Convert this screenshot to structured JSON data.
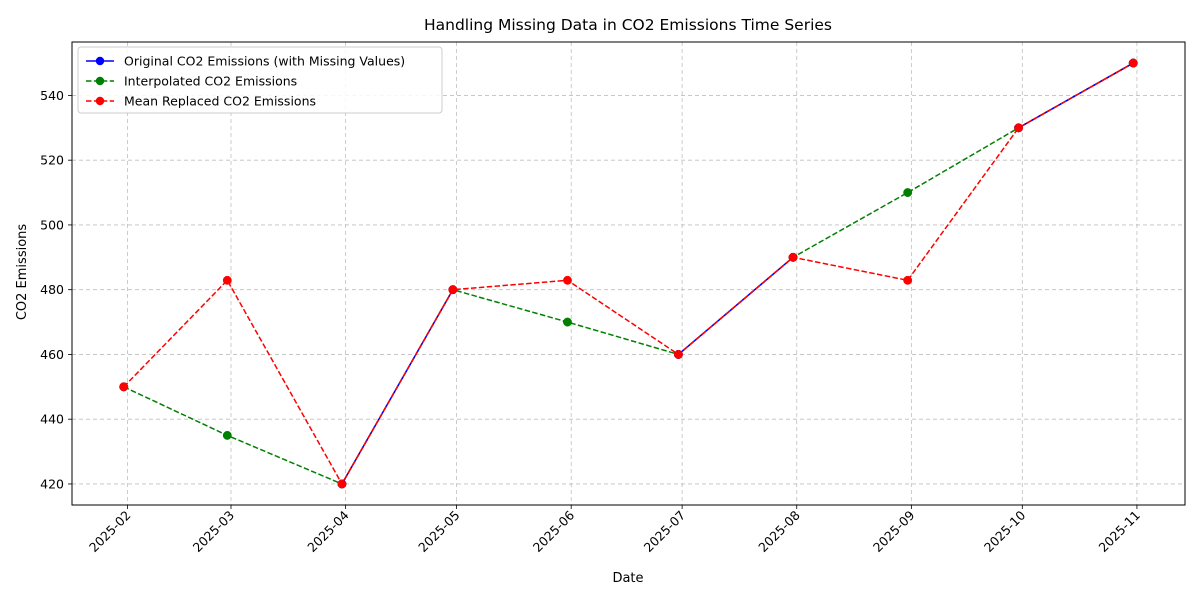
{
  "chart_data": {
    "type": "line",
    "title": "Handling Missing Data in CO2 Emissions Time Series",
    "xlabel": "Date",
    "ylabel": "CO2 Emissions",
    "x": [
      "2025-01-31",
      "2025-02-28",
      "2025-03-31",
      "2025-04-30",
      "2025-05-31",
      "2025-06-30",
      "2025-07-31",
      "2025-08-31",
      "2025-09-30",
      "2025-10-31"
    ],
    "x_ticks": [
      "2025-02",
      "2025-03",
      "2025-04",
      "2025-05",
      "2025-06",
      "2025-07",
      "2025-08",
      "2025-09",
      "2025-10",
      "2025-11"
    ],
    "x_tick_dates": [
      "2025-02-01",
      "2025-03-01",
      "2025-04-01",
      "2025-05-01",
      "2025-06-01",
      "2025-07-01",
      "2025-08-01",
      "2025-09-01",
      "2025-10-01",
      "2025-11-01"
    ],
    "xlim": [
      "2025-01-17",
      "2025-11-14"
    ],
    "ylim": [
      413.5,
      556.5
    ],
    "y_ticks": [
      420,
      440,
      460,
      480,
      500,
      520,
      540
    ],
    "grid": true,
    "legend_position": "top-left",
    "series": [
      {
        "name": "Original CO2 Emissions (with Missing Values)",
        "color": "#0000ff",
        "linestyle": "solid",
        "marker": "circle",
        "values": [
          450,
          null,
          420,
          480,
          null,
          460,
          490,
          null,
          530,
          550
        ]
      },
      {
        "name": "Interpolated CO2 Emissions",
        "color": "#008000",
        "linestyle": "dashed",
        "marker": "circle",
        "values": [
          450,
          435,
          420,
          480,
          470,
          460,
          490,
          510,
          530,
          550
        ]
      },
      {
        "name": "Mean Replaced CO2 Emissions",
        "color": "#ff0000",
        "linestyle": "dashed",
        "marker": "circle",
        "values": [
          450,
          482.9,
          420,
          480,
          482.9,
          460,
          490,
          482.9,
          530,
          550
        ]
      }
    ]
  }
}
